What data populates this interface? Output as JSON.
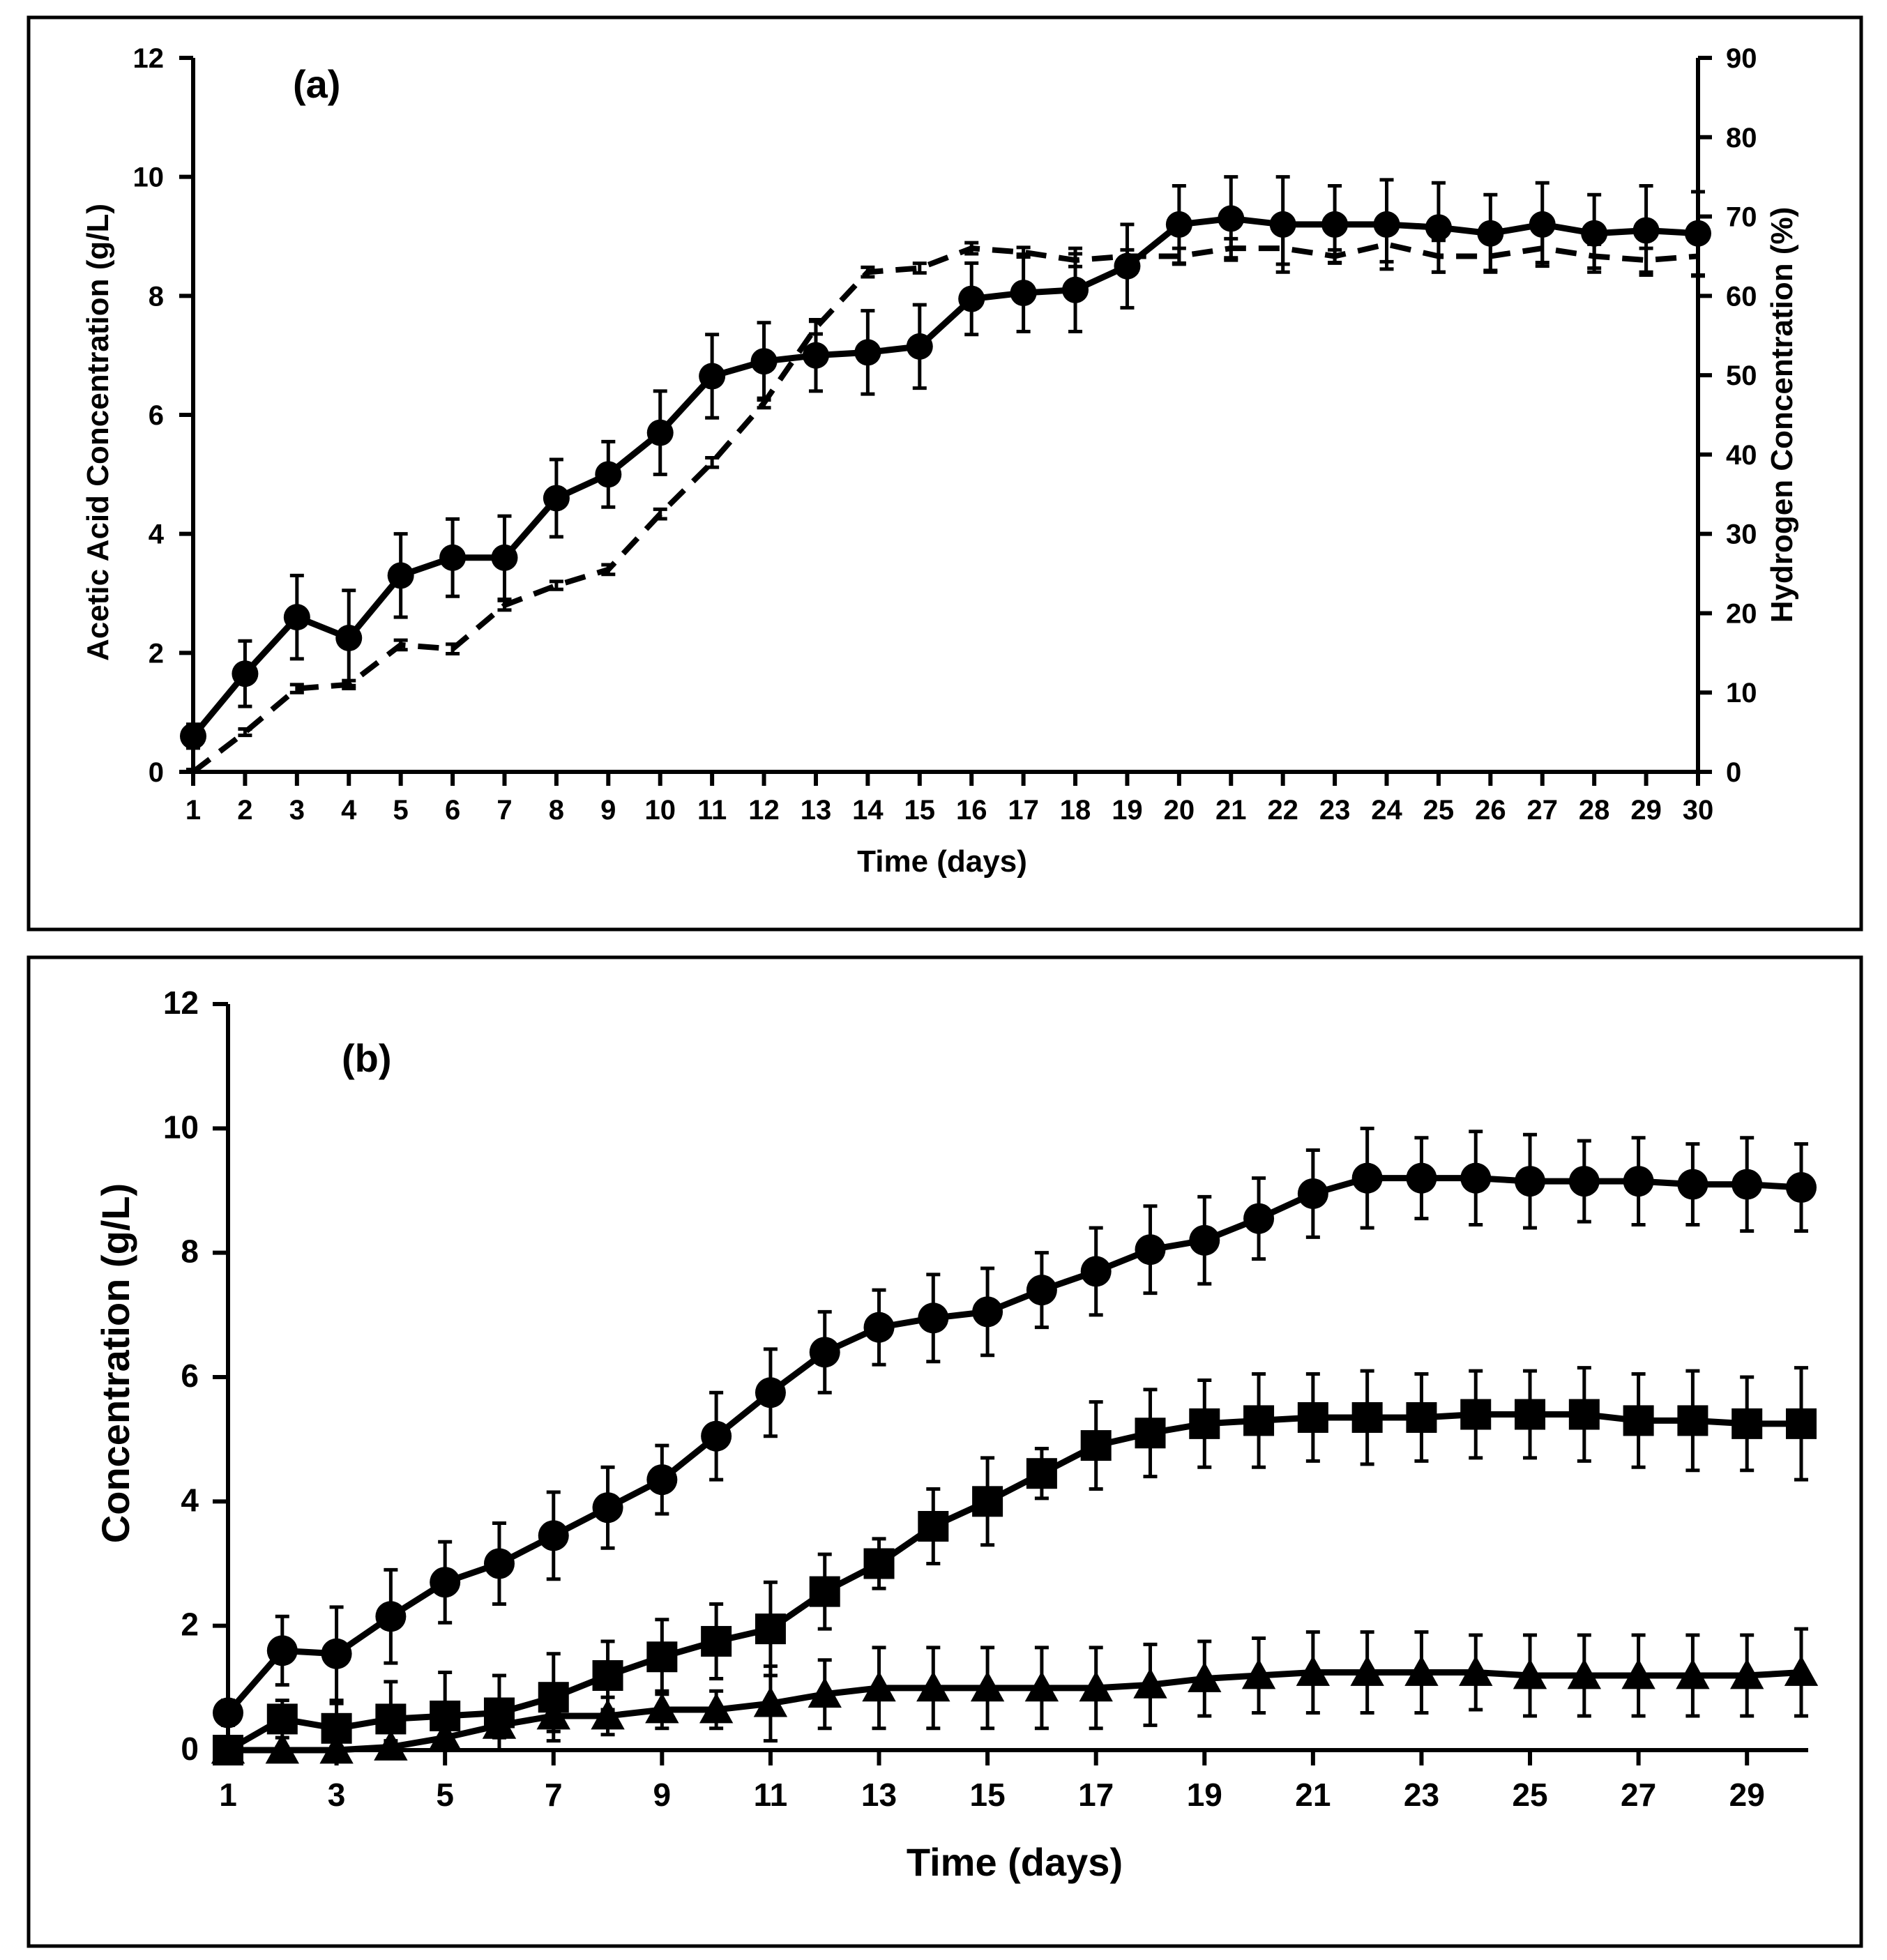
{
  "chart_data": [
    {
      "type": "line",
      "panel_label": "(a)",
      "xlabel": "Time (days)",
      "ylabel": "Acetic Acid Concentration (g/L)",
      "y2label": "Hydrogen Concentration (%)",
      "x": [
        1,
        2,
        3,
        4,
        5,
        6,
        7,
        8,
        9,
        10,
        11,
        12,
        13,
        14,
        15,
        16,
        17,
        18,
        19,
        20,
        21,
        22,
        23,
        24,
        25,
        26,
        27,
        28,
        29,
        30
      ],
      "xlim": [
        1,
        30
      ],
      "ylim": [
        0,
        12
      ],
      "y2lim": [
        0,
        90
      ],
      "yticks": [
        0,
        2,
        4,
        6,
        8,
        10,
        12
      ],
      "y2ticks": [
        0,
        10,
        20,
        30,
        40,
        50,
        60,
        70,
        80,
        90
      ],
      "xticks": [
        1,
        2,
        3,
        4,
        5,
        6,
        7,
        8,
        9,
        10,
        11,
        12,
        13,
        14,
        15,
        16,
        17,
        18,
        19,
        20,
        21,
        22,
        23,
        24,
        25,
        26,
        27,
        28,
        29,
        30
      ],
      "series": [
        {
          "axis": "left",
          "marker": "circle",
          "style": "solid",
          "values": [
            0.6,
            1.65,
            2.6,
            2.25,
            3.3,
            3.6,
            3.6,
            4.6,
            5.0,
            5.7,
            6.65,
            6.9,
            7.0,
            7.05,
            7.15,
            7.95,
            8.05,
            8.1,
            8.5,
            9.2,
            9.3,
            9.2,
            9.2,
            9.2,
            9.15,
            9.05,
            9.2,
            9.05,
            9.1,
            9.05
          ],
          "errors": [
            0.2,
            0.55,
            0.7,
            0.8,
            0.7,
            0.65,
            0.7,
            0.65,
            0.55,
            0.7,
            0.7,
            0.65,
            0.6,
            0.7,
            0.7,
            0.6,
            0.65,
            0.7,
            0.7,
            0.65,
            0.7,
            0.8,
            0.65,
            0.75,
            0.75,
            0.65,
            0.7,
            0.65,
            0.75,
            0.7
          ]
        },
        {
          "axis": "right",
          "marker": "none",
          "style": "dashed",
          "values": [
            0,
            5,
            10.5,
            11,
            16,
            15.5,
            21,
            23.5,
            25.5,
            32.5,
            39,
            46.5,
            56,
            63,
            63.5,
            66,
            65.5,
            64.5,
            65,
            65,
            66,
            66,
            65,
            66.5,
            65,
            65,
            66,
            65,
            64.5,
            65
          ],
          "errors": [
            0.3,
            0.4,
            0.5,
            0.5,
            0.6,
            0.6,
            0.6,
            0.5,
            0.6,
            0.6,
            0.6,
            0.6,
            0.8,
            0.6,
            0.6,
            0.7,
            0.6,
            0.8,
            0.8,
            1.0,
            1.2,
            2.0,
            0.8,
            2.2,
            2.0,
            1.8,
            1.8,
            1.5,
            1.5,
            2.5
          ]
        }
      ]
    },
    {
      "type": "line",
      "panel_label": "(b)",
      "xlabel": "Time (days)",
      "ylabel": "Concentration (g/L)",
      "x": [
        1,
        2,
        3,
        4,
        5,
        6,
        7,
        8,
        9,
        10,
        11,
        12,
        13,
        14,
        15,
        16,
        17,
        18,
        19,
        20,
        21,
        22,
        23,
        24,
        25,
        26,
        27,
        28,
        29,
        30
      ],
      "xlim": [
        1,
        30
      ],
      "ylim": [
        0,
        12
      ],
      "yticks": [
        0,
        2,
        4,
        6,
        8,
        10,
        12
      ],
      "xticks": [
        1,
        3,
        5,
        7,
        9,
        11,
        13,
        15,
        17,
        19,
        21,
        23,
        25,
        27,
        29
      ],
      "series": [
        {
          "marker": "circle",
          "style": "solid",
          "values": [
            0.6,
            1.6,
            1.55,
            2.15,
            2.7,
            3.0,
            3.45,
            3.9,
            4.35,
            5.05,
            5.75,
            6.4,
            6.8,
            6.95,
            7.05,
            7.4,
            7.7,
            8.05,
            8.2,
            8.55,
            8.95,
            9.2,
            9.2,
            9.2,
            9.15,
            9.15,
            9.15,
            9.1,
            9.1,
            9.05
          ],
          "errors": [
            0.2,
            0.55,
            0.75,
            0.75,
            0.65,
            0.65,
            0.7,
            0.65,
            0.55,
            0.7,
            0.7,
            0.65,
            0.6,
            0.7,
            0.7,
            0.6,
            0.7,
            0.7,
            0.7,
            0.65,
            0.7,
            0.8,
            0.65,
            0.75,
            0.75,
            0.65,
            0.7,
            0.65,
            0.75,
            0.7
          ]
        },
        {
          "marker": "square",
          "style": "solid",
          "values": [
            0,
            0.5,
            0.35,
            0.5,
            0.55,
            0.6,
            0.85,
            1.2,
            1.5,
            1.75,
            1.95,
            2.55,
            3.0,
            3.6,
            4.0,
            4.45,
            4.9,
            5.1,
            5.25,
            5.3,
            5.35,
            5.35,
            5.35,
            5.4,
            5.4,
            5.4,
            5.3,
            5.3,
            5.25,
            5.25
          ],
          "errors": [
            0.1,
            0.3,
            0.4,
            0.6,
            0.7,
            0.6,
            0.7,
            0.55,
            0.6,
            0.6,
            0.75,
            0.6,
            0.4,
            0.6,
            0.7,
            0.4,
            0.7,
            0.7,
            0.7,
            0.75,
            0.7,
            0.75,
            0.7,
            0.7,
            0.7,
            0.75,
            0.75,
            0.8,
            0.75,
            0.9
          ]
        },
        {
          "marker": "triangle",
          "style": "solid",
          "values": [
            0,
            0,
            0,
            0.05,
            0.2,
            0.4,
            0.55,
            0.55,
            0.65,
            0.65,
            0.75,
            0.9,
            1.0,
            1.0,
            1.0,
            1.0,
            1.0,
            1.05,
            1.15,
            1.2,
            1.25,
            1.25,
            1.25,
            1.25,
            1.2,
            1.2,
            1.2,
            1.2,
            1.2,
            1.25
          ],
          "errors": [
            0.05,
            0.05,
            0.05,
            0.1,
            0.15,
            0.2,
            0.25,
            0.3,
            0.3,
            0.3,
            0.6,
            0.55,
            0.65,
            0.65,
            0.65,
            0.65,
            0.65,
            0.65,
            0.6,
            0.6,
            0.65,
            0.65,
            0.65,
            0.6,
            0.65,
            0.65,
            0.65,
            0.65,
            0.65,
            0.7
          ]
        }
      ]
    }
  ]
}
